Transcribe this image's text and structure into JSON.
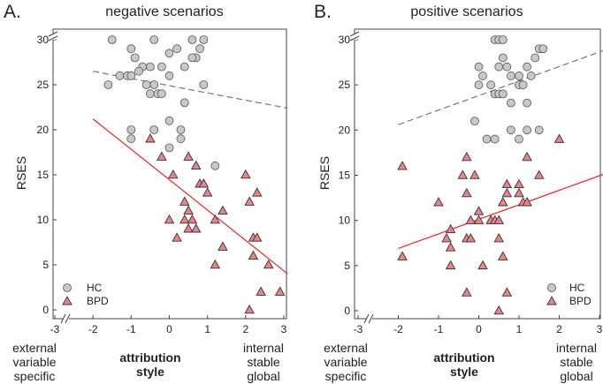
{
  "chart_data": [
    {
      "type": "scatter",
      "panel_label": "A.",
      "title": "negative scenarios",
      "ylabel": "RSES",
      "xlabel_main": [
        "attribution",
        "style"
      ],
      "x_left_label": [
        "external",
        "variable",
        "specific"
      ],
      "x_right_label": [
        "internal",
        "stable",
        "global"
      ],
      "xlim": [
        -3,
        3
      ],
      "ylim": [
        0,
        30
      ],
      "xticks": [
        "-3",
        "-2",
        "-1",
        "0",
        "1",
        "2",
        "3"
      ],
      "yticks": [
        "0",
        "5",
        "10",
        "15",
        "20",
        "25",
        "30"
      ],
      "axis_break": true,
      "legend": {
        "position": "bottom-left",
        "entries": [
          "HC",
          "BPD"
        ]
      },
      "series": [
        {
          "name": "HC",
          "marker": "circle",
          "color": "#c8c8c8",
          "points": [
            [
              -1.5,
              30
            ],
            [
              -0.4,
              30
            ],
            [
              0.6,
              30
            ],
            [
              0.9,
              30
            ],
            [
              -1.0,
              29
            ],
            [
              0.2,
              29
            ],
            [
              0.8,
              29
            ],
            [
              0.0,
              28.5
            ],
            [
              -0.9,
              28
            ],
            [
              0.7,
              28
            ],
            [
              0.6,
              28
            ],
            [
              -0.7,
              27
            ],
            [
              -0.5,
              27
            ],
            [
              -0.2,
              27
            ],
            [
              0.4,
              27
            ],
            [
              -0.8,
              26.5
            ],
            [
              -1.3,
              26
            ],
            [
              -1.1,
              26
            ],
            [
              -1.0,
              26
            ],
            [
              0.0,
              26
            ],
            [
              -0.4,
              25
            ],
            [
              -0.6,
              25
            ],
            [
              0.9,
              25
            ],
            [
              -1.6,
              25
            ],
            [
              -0.5,
              24
            ],
            [
              -0.3,
              24
            ],
            [
              -0.2,
              24
            ],
            [
              0.4,
              23
            ],
            [
              -1.0,
              20
            ],
            [
              0.3,
              20
            ],
            [
              -0.4,
              20
            ],
            [
              -1.0,
              19
            ],
            [
              0.3,
              19
            ],
            [
              0.0,
              21
            ],
            [
              0.0,
              18
            ],
            [
              1.2,
              16
            ]
          ]
        },
        {
          "name": "BPD",
          "marker": "triangle",
          "color": "#e8848c",
          "points": [
            [
              -0.5,
              19
            ],
            [
              -0.2,
              17
            ],
            [
              0.5,
              17
            ],
            [
              0.7,
              16
            ],
            [
              0.1,
              15
            ],
            [
              2.0,
              15
            ],
            [
              0.8,
              14
            ],
            [
              0.9,
              14
            ],
            [
              1.0,
              13
            ],
            [
              2.3,
              13
            ],
            [
              2.1,
              12
            ],
            [
              0.4,
              12
            ],
            [
              0.5,
              11
            ],
            [
              1.4,
              11
            ],
            [
              0.0,
              10
            ],
            [
              0.4,
              10
            ],
            [
              0.6,
              10
            ],
            [
              1.2,
              10
            ],
            [
              0.5,
              9
            ],
            [
              0.7,
              9
            ],
            [
              0.2,
              8
            ],
            [
              2.2,
              8
            ],
            [
              2.3,
              8
            ],
            [
              1.4,
              7
            ],
            [
              2.2,
              6
            ],
            [
              1.2,
              5
            ],
            [
              2.6,
              5
            ],
            [
              2.4,
              2
            ],
            [
              2.9,
              2
            ],
            [
              2.1,
              0
            ]
          ]
        }
      ],
      "fit_lines": [
        {
          "name": "HC",
          "style": "dashed",
          "color": "#777777",
          "from": [
            -2,
            26.5
          ],
          "to": [
            3.1,
            22.4
          ]
        },
        {
          "name": "BPD",
          "style": "solid",
          "color": "#ee2222",
          "from": [
            -2,
            21.2
          ],
          "to": [
            3.1,
            4.0
          ]
        }
      ]
    },
    {
      "type": "scatter",
      "panel_label": "B.",
      "title": "positive scenarios",
      "ylabel": "RSES",
      "xlabel_main": [
        "attribution",
        "style"
      ],
      "x_left_label": [
        "external",
        "variable",
        "specific"
      ],
      "x_right_label": [
        "internal",
        "stable",
        "global"
      ],
      "xlim": [
        -3,
        3
      ],
      "ylim": [
        0,
        30
      ],
      "xticks": [
        "-3",
        "-2",
        "-1",
        "0",
        "1",
        "2",
        "3"
      ],
      "yticks": [
        "0",
        "5",
        "10",
        "15",
        "20",
        "25",
        "30"
      ],
      "axis_break": true,
      "legend": {
        "position": "bottom-right",
        "entries": [
          "HC",
          "BPD"
        ]
      },
      "series": [
        {
          "name": "HC",
          "marker": "circle",
          "color": "#c8c8c8",
          "points": [
            [
              0.4,
              30
            ],
            [
              0.5,
              30
            ],
            [
              0.6,
              30
            ],
            [
              1.5,
              29
            ],
            [
              1.6,
              29
            ],
            [
              0.6,
              28
            ],
            [
              1.4,
              28
            ],
            [
              0.0,
              27
            ],
            [
              0.5,
              27
            ],
            [
              0.7,
              27
            ],
            [
              1.2,
              27
            ],
            [
              0.1,
              26
            ],
            [
              0.8,
              26
            ],
            [
              1.0,
              26
            ],
            [
              1.3,
              26
            ],
            [
              0.0,
              25
            ],
            [
              0.3,
              25
            ],
            [
              1.0,
              25
            ],
            [
              1.1,
              25
            ],
            [
              0.4,
              24
            ],
            [
              0.5,
              24
            ],
            [
              0.6,
              24
            ],
            [
              0.8,
              23
            ],
            [
              1.2,
              23
            ],
            [
              -0.1,
              21
            ],
            [
              0.8,
              20
            ],
            [
              1.2,
              20
            ],
            [
              1.5,
              20
            ],
            [
              0.2,
              19
            ],
            [
              0.4,
              19
            ],
            [
              1.0,
              19
            ]
          ]
        },
        {
          "name": "BPD",
          "marker": "triangle",
          "color": "#e8848c",
          "points": [
            [
              -1.9,
              16
            ],
            [
              -1.9,
              6
            ],
            [
              -1.0,
              12
            ],
            [
              -0.3,
              17
            ],
            [
              -0.4,
              15
            ],
            [
              -0.1,
              15
            ],
            [
              1.2,
              17
            ],
            [
              2.0,
              19
            ],
            [
              0.7,
              14
            ],
            [
              1.0,
              14
            ],
            [
              1.5,
              15
            ],
            [
              -0.3,
              13
            ],
            [
              0.6,
              12
            ],
            [
              0.7,
              13
            ],
            [
              1.0,
              13
            ],
            [
              1.1,
              12
            ],
            [
              1.2,
              12
            ],
            [
              0.0,
              11
            ],
            [
              -0.2,
              10
            ],
            [
              0.0,
              10
            ],
            [
              0.3,
              10
            ],
            [
              0.4,
              10
            ],
            [
              0.5,
              10
            ],
            [
              -0.7,
              9
            ],
            [
              -0.8,
              8
            ],
            [
              -0.3,
              8
            ],
            [
              -0.2,
              8
            ],
            [
              0.5,
              8
            ],
            [
              -0.7,
              7
            ],
            [
              -0.7,
              5
            ],
            [
              0.1,
              5
            ],
            [
              0.6,
              6
            ],
            [
              -0.3,
              2
            ],
            [
              0.7,
              2
            ],
            [
              0.5,
              0
            ]
          ]
        }
      ],
      "fit_lines": [
        {
          "name": "HC",
          "style": "dashed",
          "color": "#777777",
          "from": [
            -2,
            20.6
          ],
          "to": [
            3.1,
            28.8
          ]
        },
        {
          "name": "BPD",
          "style": "solid",
          "color": "#ee2222",
          "from": [
            -2,
            6.9
          ],
          "to": [
            3.1,
            15.1
          ]
        }
      ]
    }
  ]
}
